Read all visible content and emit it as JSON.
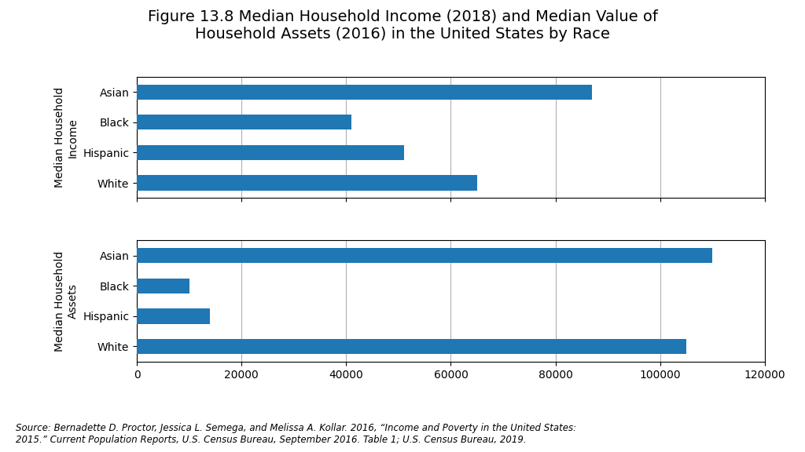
{
  "chart_data": [
    {
      "type": "bar",
      "orientation": "horizontal",
      "title": "Figure 13.8 Median Household Income (2018) and Median Value of\nHousehold Assets (2016) in the United States by Race",
      "ylabel": "Median Household\nIncome",
      "categories": [
        "Asian",
        "Black",
        "Hispanic",
        "White"
      ],
      "values": [
        87000,
        41000,
        51000,
        65000
      ],
      "xlim": [
        0,
        120000
      ],
      "xticks": [
        0,
        20000,
        40000,
        60000,
        80000,
        100000,
        120000
      ],
      "grid": true,
      "tick_labels": "y"
    },
    {
      "type": "bar",
      "orientation": "horizontal",
      "ylabel": "Median Household\nAssets",
      "categories": [
        "Asian",
        "Black",
        "Hispanic",
        "White"
      ],
      "values": [
        110000,
        10000,
        14000,
        105000
      ],
      "xlim": [
        0,
        120000
      ],
      "xticks": [
        0,
        20000,
        40000,
        60000,
        80000,
        100000,
        120000
      ],
      "grid": true,
      "annotations": [
        "Source: Bernadette D. Proctor, Jessica L. Semega, and Melissa A. Kollar. 2016, “Income and Poverty in the United States:\n2015.” Current Population Reports, U.S. Census Bureau, September 2016. Table 1; U.S. Census Bureau, 2019."
      ]
    }
  ]
}
